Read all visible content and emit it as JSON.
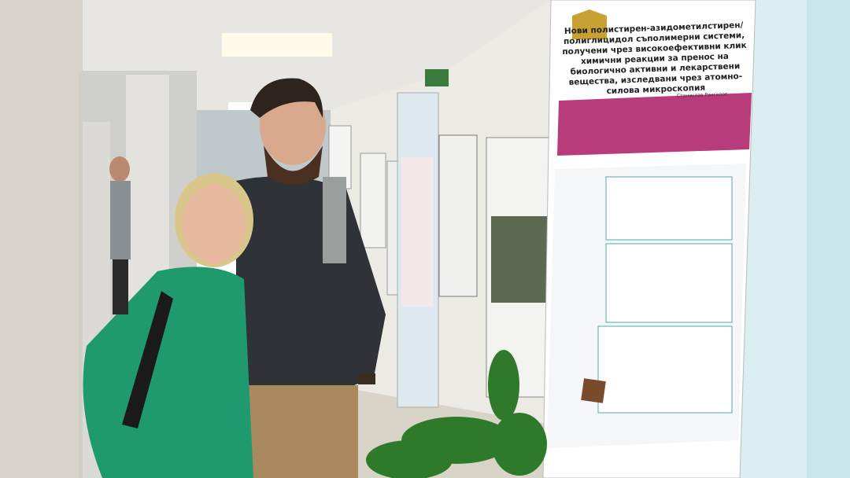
{
  "poster": {
    "title": "Нови полистирен-азидометилстирен/полиглицидол съполимерни системи, получени чрез високоефективни клик химични реакции за пренос на биологично активни и лекарствени вещества, изследвани чрез атомно-силова микроскопия",
    "authors": "Станислав Рангелов"
  }
}
